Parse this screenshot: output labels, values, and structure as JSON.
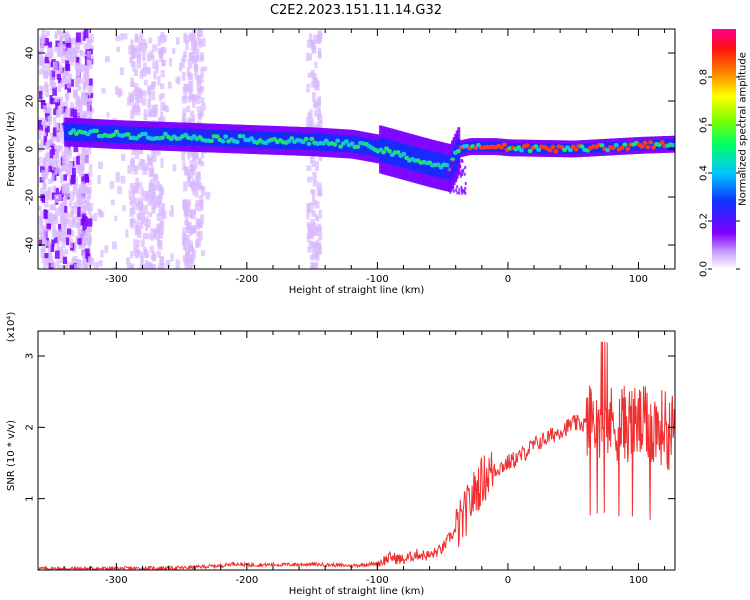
{
  "title": "C2E2.2023.151.11.14.G32",
  "colors": {
    "snr_line": "#f03030",
    "ridge_core": "#ff3a1a",
    "ridge_mid": "#22e070",
    "ridge_outer": "#1a2aff",
    "halo": "#7a00ff",
    "faint": "#d9b8ff"
  },
  "chart_data": [
    {
      "type": "heatmap",
      "xlabel": "Height of straight line (km)",
      "ylabel": "Frequency (Hz)",
      "xlim": [
        -360,
        128
      ],
      "ylim": [
        -50,
        50
      ],
      "xticks": [
        -300,
        -200,
        -100,
        0,
        100
      ],
      "xtick_labels": [
        "-300",
        "-200",
        "-100",
        "0",
        "100"
      ],
      "yticks": [
        -40,
        -20,
        0,
        20,
        40
      ],
      "ytick_labels": [
        "-40",
        "-20",
        "0",
        "20",
        "40"
      ],
      "colorbar": {
        "label": "Normalized spectral amplitude",
        "range": [
          0,
          1
        ],
        "ticks": [
          0.0,
          0.2,
          0.4,
          0.6,
          0.8
        ],
        "tick_labels": [
          "0.0",
          "0.2",
          "0.4",
          "0.6",
          "0.8"
        ]
      },
      "ridge": {
        "x": [
          -335,
          -300,
          -250,
          -200,
          -150,
          -120,
          -100,
          -80,
          -60,
          -45,
          -38,
          -30,
          -10,
          0,
          50,
          100,
          125
        ],
        "y": [
          7,
          6,
          5,
          4,
          3,
          2,
          0,
          -3,
          -6,
          -8,
          0,
          1,
          1,
          0.5,
          0,
          1.5,
          2
        ]
      },
      "grid": false
    },
    {
      "type": "line",
      "xlabel": "Height of straight line (km)",
      "ylabel": "SNR (10 * v/v)",
      "y_multiplier_label": "(x10⁴)",
      "xlim": [
        -360,
        128
      ],
      "ylim": [
        0,
        3.35
      ],
      "xticks": [
        -300,
        -200,
        -100,
        0,
        100
      ],
      "xtick_labels": [
        "-300",
        "-200",
        "-100",
        "0",
        "100"
      ],
      "yticks": [
        1,
        2,
        3
      ],
      "ytick_labels": [
        "1",
        "2",
        "3"
      ],
      "series": [
        {
          "x": [
            -360,
            -300,
            -250,
            -220,
            -210,
            -200,
            -150,
            -120,
            -100,
            -90,
            -80,
            -70,
            -60,
            -50,
            -45,
            -40,
            -35,
            -30,
            -25,
            -20,
            -15,
            -10,
            -5,
            0,
            10,
            20,
            30,
            40,
            50,
            60,
            70,
            75,
            80,
            90,
            100,
            110,
            118,
            122,
            128
          ],
          "y": [
            0.02,
            0.02,
            0.03,
            0.06,
            0.09,
            0.07,
            0.08,
            0.06,
            0.09,
            0.18,
            0.14,
            0.22,
            0.2,
            0.3,
            0.45,
            0.55,
            0.7,
            0.9,
            1.1,
            1.25,
            1.35,
            1.4,
            1.45,
            1.5,
            1.6,
            1.75,
            1.85,
            1.95,
            2.05,
            2.05,
            2.1,
            2.1,
            2.05,
            2.05,
            2.05,
            2.0,
            2.0,
            1.95,
            1.95
          ]
        }
      ],
      "grid": false
    }
  ]
}
